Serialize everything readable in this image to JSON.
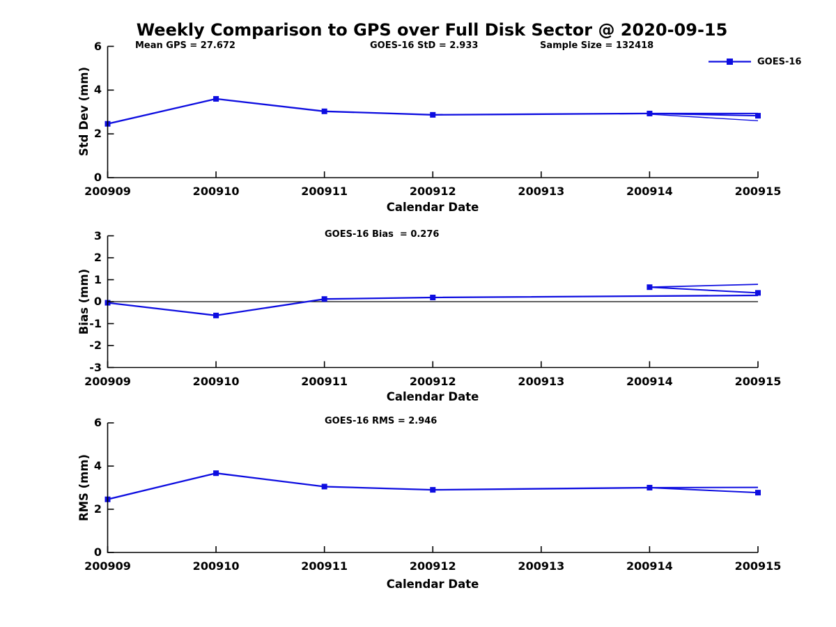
{
  "title": "Weekly Comparison to GPS over Full Disk Sector @ 2020-09-15",
  "colors": {
    "series": "#0d0de0",
    "axis": "#000000",
    "zero_line": "#000000"
  },
  "legend": {
    "label": "GOES-16"
  },
  "stats": {
    "mean_gps": 27.672,
    "goes16_std": 2.933,
    "sample_size": 132418,
    "goes16_bias": 0.276,
    "goes16_rms": 2.946
  },
  "chart_data": [
    {
      "type": "line",
      "panel": "std_dev",
      "ylabel": "Std Dev (mm)",
      "xlabel": "Calendar Date",
      "ylim": [
        0,
        6
      ],
      "yticks": [
        0,
        2,
        4,
        6
      ],
      "categories": [
        "200909",
        "200910",
        "200911",
        "200912",
        "200913",
        "200914",
        "200915"
      ],
      "legend_entries": [
        "GOES-16"
      ],
      "annotations": [
        {
          "text": "Mean GPS = 27.672"
        },
        {
          "text": "GOES-16 StD = 2.933"
        },
        {
          "text": "Sample Size = 132418"
        }
      ],
      "series": [
        {
          "name": "GOES-16",
          "markers": [
            [
              0,
              2.46
            ],
            [
              1,
              3.6
            ],
            [
              2,
              3.03
            ],
            [
              3,
              2.87
            ],
            [
              5,
              2.93
            ],
            [
              6,
              2.83
            ]
          ],
          "paths": [
            {
              "points": [
                [
                  0,
                  2.46
                ],
                [
                  1,
                  3.6
                ],
                [
                  2,
                  3.03
                ],
                [
                  3,
                  2.87
                ],
                [
                  5,
                  2.93
                ]
              ],
              "width": 2.3
            },
            {
              "points": [
                [
                  5,
                  2.93
                ],
                [
                  6.38,
                  2.93
                ]
              ],
              "width": 2.0
            },
            {
              "points": [
                [
                  5,
                  2.93
                ],
                [
                  6,
                  2.83
                ]
              ],
              "width": 2.0
            },
            {
              "points": [
                [
                  5,
                  2.9
                ],
                [
                  7,
                  2.3
                ]
              ],
              "width": 1.4
            }
          ]
        }
      ],
      "zero_line": false
    },
    {
      "type": "line",
      "panel": "bias",
      "ylabel": "Bias (mm)",
      "xlabel": "Calendar Date",
      "ylim": [
        -3,
        3
      ],
      "yticks": [
        -3,
        -2,
        -1,
        0,
        1,
        2,
        3
      ],
      "categories": [
        "200909",
        "200910",
        "200911",
        "200912",
        "200913",
        "200914",
        "200915"
      ],
      "annotations": [
        {
          "text": "GOES-16 Bias  = 0.276"
        }
      ],
      "series": [
        {
          "name": "GOES-16",
          "markers": [
            [
              0,
              -0.05
            ],
            [
              1,
              -0.63
            ],
            [
              2,
              0.12
            ],
            [
              3,
              0.19
            ],
            [
              5,
              0.66
            ],
            [
              6,
              0.4
            ]
          ],
          "paths": [
            {
              "points": [
                [
                  0,
                  -0.05
                ],
                [
                  1,
                  -0.63
                ],
                [
                  2,
                  0.12
                ],
                [
                  3,
                  0.19
                ],
                [
                  6.4,
                  0.3
                ]
              ],
              "width": 2.3
            },
            {
              "points": [
                [
                  5,
                  0.66
                ],
                [
                  6,
                  0.4
                ]
              ],
              "width": 2.0
            },
            {
              "points": [
                [
                  5,
                  0.66
                ],
                [
                  6.4,
                  0.84
                ]
              ],
              "width": 1.8
            }
          ]
        }
      ],
      "zero_line": true
    },
    {
      "type": "line",
      "panel": "rms",
      "ylabel": "RMS (mm)",
      "xlabel": "Calendar Date",
      "ylim": [
        0,
        6
      ],
      "yticks": [
        0,
        2,
        4,
        6
      ],
      "categories": [
        "200909",
        "200910",
        "200911",
        "200912",
        "200913",
        "200914",
        "200915"
      ],
      "annotations": [
        {
          "text": "GOES-16 RMS = 2.946"
        }
      ],
      "series": [
        {
          "name": "GOES-16",
          "markers": [
            [
              0,
              2.46
            ],
            [
              1,
              3.67
            ],
            [
              2,
              3.05
            ],
            [
              3,
              2.9
            ],
            [
              5,
              3.0
            ],
            [
              6,
              2.77
            ]
          ],
          "paths": [
            {
              "points": [
                [
                  0,
                  2.46
                ],
                [
                  1,
                  3.67
                ],
                [
                  2,
                  3.05
                ],
                [
                  3,
                  2.9
                ],
                [
                  5,
                  3.0
                ]
              ],
              "width": 2.3
            },
            {
              "points": [
                [
                  5,
                  3.0
                ],
                [
                  6.38,
                  3.02
                ]
              ],
              "width": 2.0
            },
            {
              "points": [
                [
                  5,
                  3.0
                ],
                [
                  6,
                  2.77
                ]
              ],
              "width": 2.0
            }
          ]
        }
      ],
      "zero_line": false
    }
  ]
}
